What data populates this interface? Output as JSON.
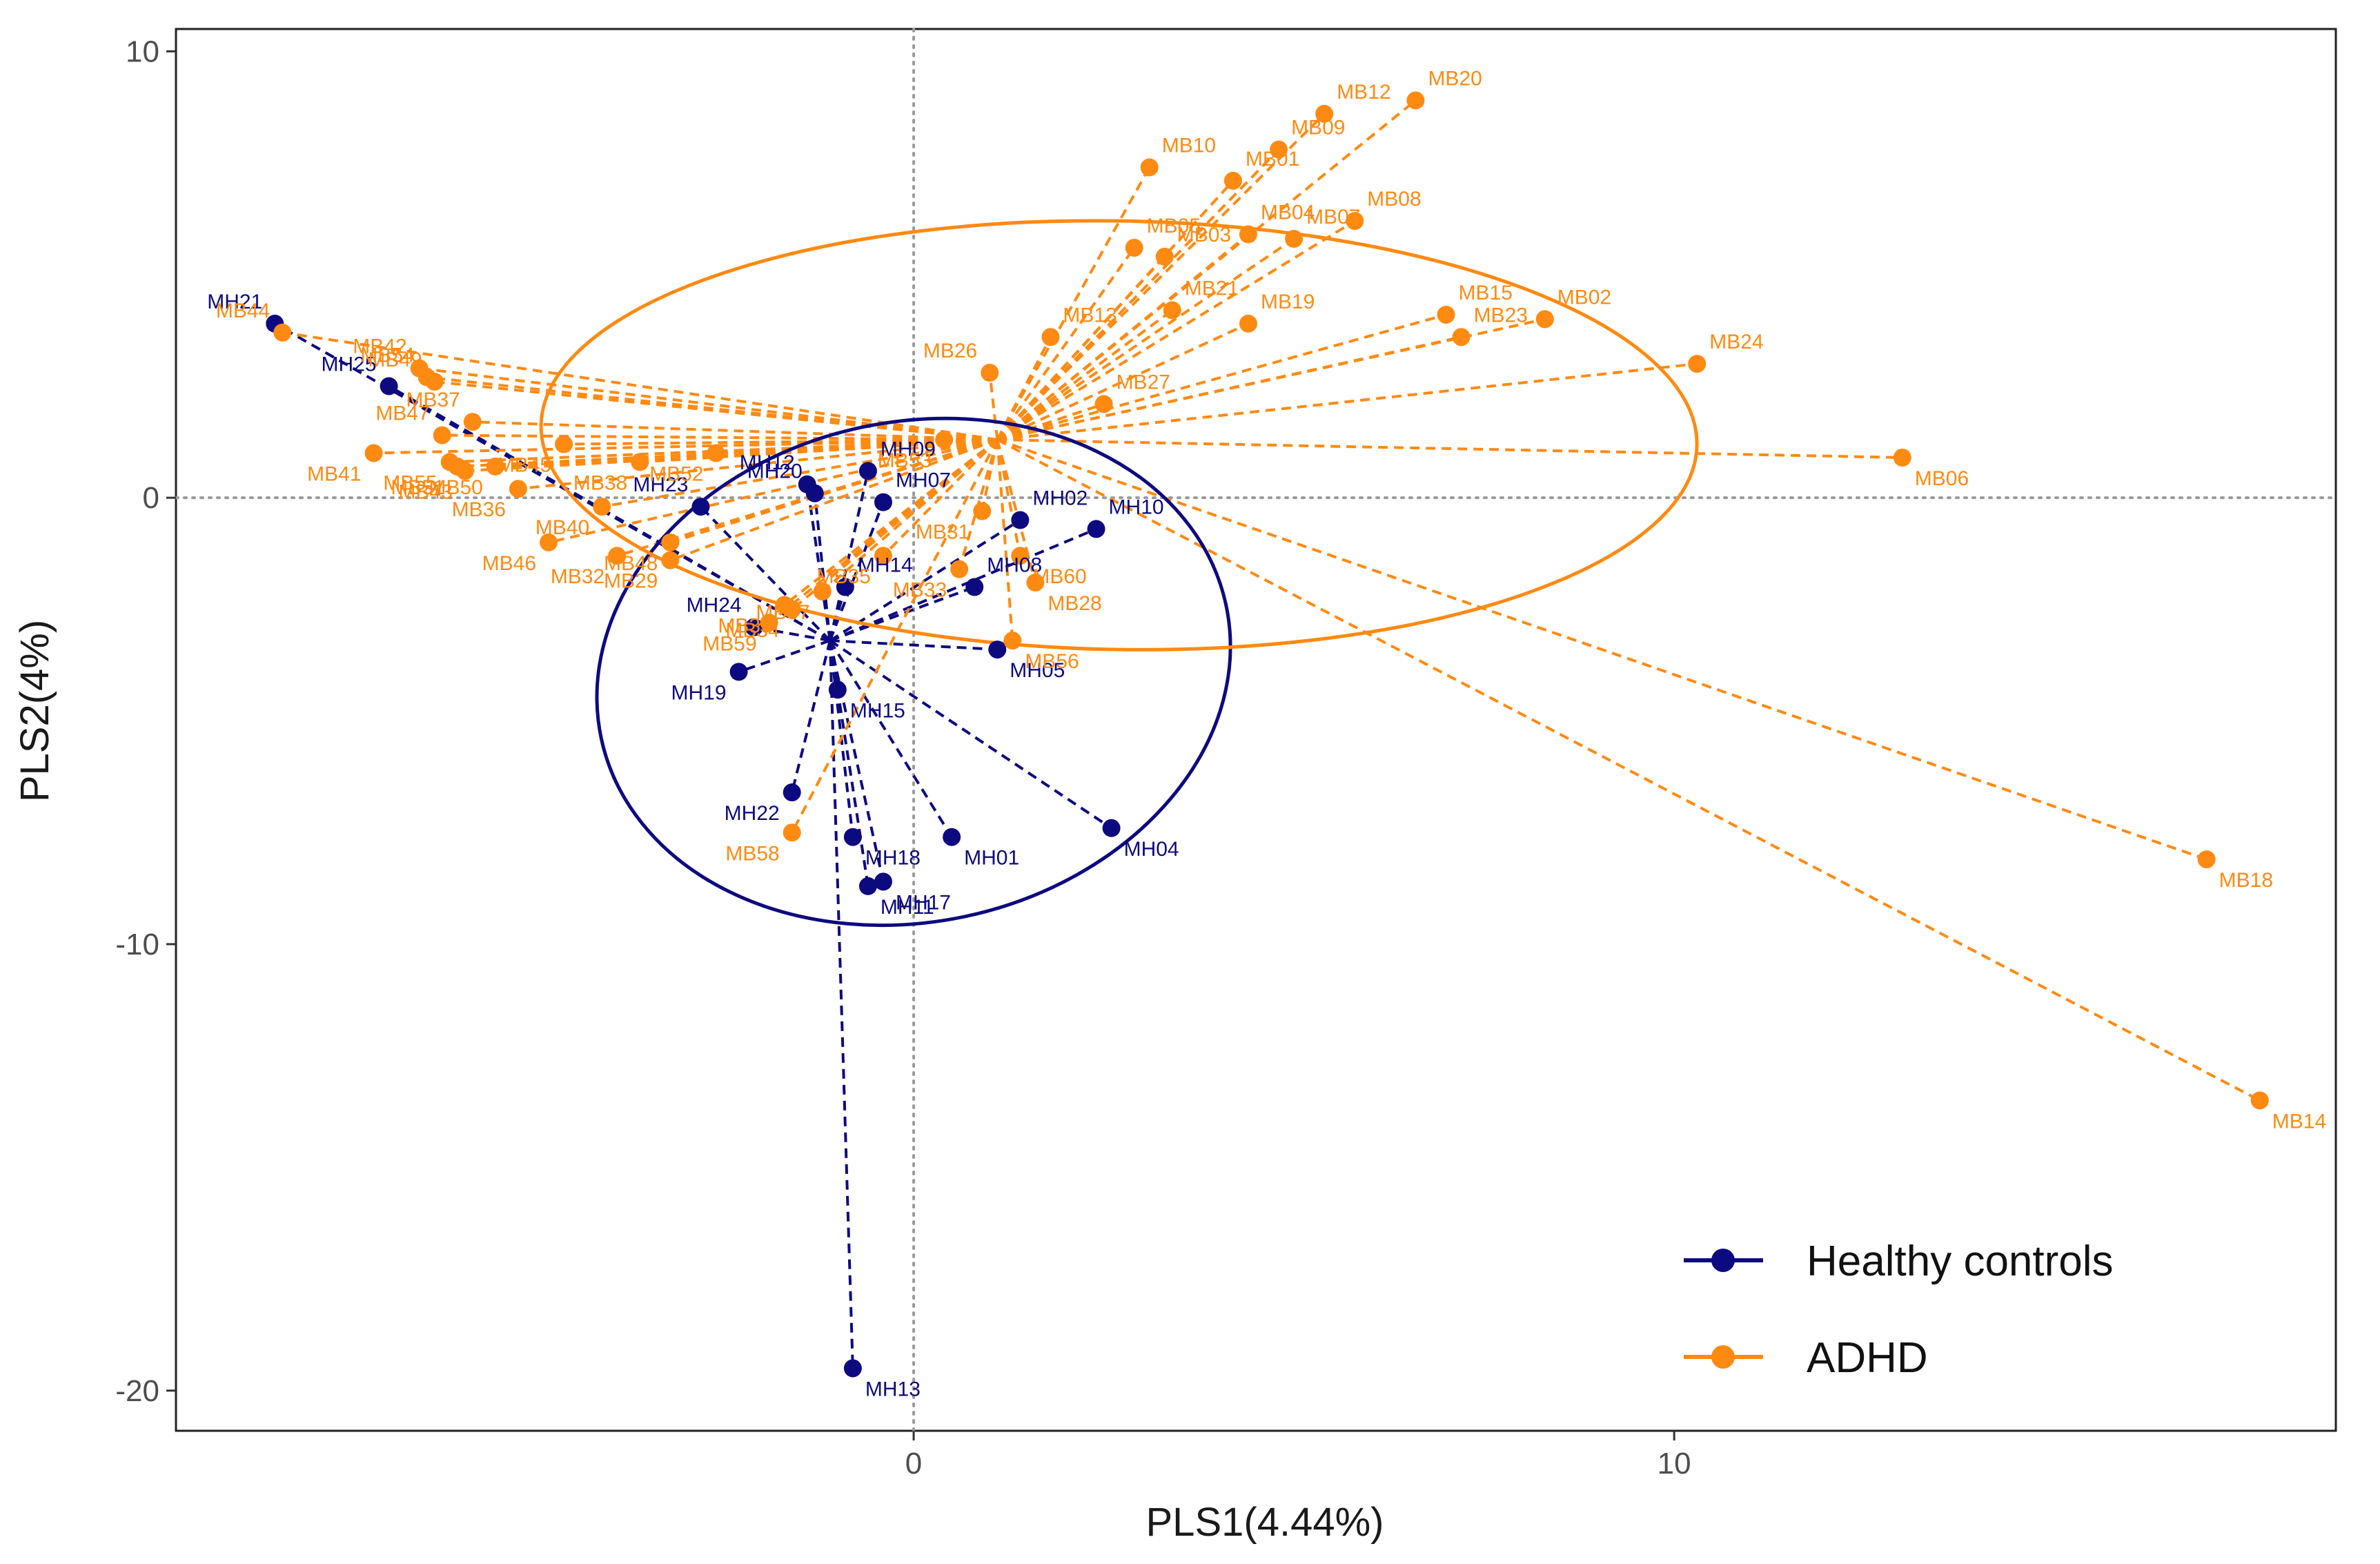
{
  "chart_data": {
    "type": "scatter",
    "title": "",
    "xlabel": "PLS1(4.44%)",
    "ylabel": "PLS2(4%)",
    "xlim": [
      -9.7,
      18.7
    ],
    "ylim": [
      -20.9,
      10.5
    ],
    "xticks": [
      0,
      10
    ],
    "yticks": [
      10,
      0,
      -10,
      -20
    ],
    "grid": false,
    "reference_lines": {
      "x": 0,
      "y": 0,
      "style": "dotted"
    },
    "legend": {
      "position": "bottom-right"
    },
    "colors": {
      "Healthy controls": "#0d0a80",
      "ADHD": "#ff8a12"
    },
    "series": [
      {
        "name": "Healthy controls",
        "centroid": [
          -1.1,
          -3.2
        ],
        "ellipse": {
          "cx": 0.0,
          "cy": -3.9,
          "rx": 4.2,
          "ry": 5.6,
          "angle_deg": 12
        },
        "points": [
          {
            "label": "MH21",
            "x": -8.4,
            "y": 3.9
          },
          {
            "label": "MH25",
            "x": -6.9,
            "y": 2.5
          },
          {
            "label": "MH12",
            "x": -1.4,
            "y": 0.3
          },
          {
            "label": "MH09",
            "x": -0.6,
            "y": 0.6
          },
          {
            "label": "MH20",
            "x": -1.3,
            "y": 0.1
          },
          {
            "label": "MH23",
            "x": -2.8,
            "y": -0.2
          },
          {
            "label": "MH07",
            "x": -0.4,
            "y": -0.1
          },
          {
            "label": "MH02",
            "x": 1.4,
            "y": -0.5
          },
          {
            "label": "MH10",
            "x": 2.4,
            "y": -0.7
          },
          {
            "label": "MH08",
            "x": 0.8,
            "y": -2.0
          },
          {
            "label": "MH14",
            "x": -0.9,
            "y": -2.0
          },
          {
            "label": "MH24",
            "x": -2.1,
            "y": -2.9
          },
          {
            "label": "MH19",
            "x": -2.3,
            "y": -3.9
          },
          {
            "label": "MH05",
            "x": 1.1,
            "y": -3.4
          },
          {
            "label": "MH15",
            "x": -1.0,
            "y": -4.3
          },
          {
            "label": "MH22",
            "x": -1.6,
            "y": -6.6
          },
          {
            "label": "MH18",
            "x": -0.8,
            "y": -7.6
          },
          {
            "label": "MH01",
            "x": 0.5,
            "y": -7.6
          },
          {
            "label": "MH04",
            "x": 2.6,
            "y": -7.4
          },
          {
            "label": "MH17",
            "x": -0.4,
            "y": -8.6
          },
          {
            "label": "MH11",
            "x": -0.6,
            "y": -8.7
          },
          {
            "label": "MH13",
            "x": -0.8,
            "y": -19.5
          }
        ]
      },
      {
        "name": "ADHD",
        "centroid": [
          1.1,
          1.3
        ],
        "ellipse": {
          "cx": 2.7,
          "cy": 1.4,
          "rx": 7.6,
          "ry": 4.8,
          "angle_deg": -1
        },
        "points": [
          {
            "label": "MB44",
            "x": -8.3,
            "y": 3.7
          },
          {
            "label": "MB42",
            "x": -6.5,
            "y": 2.9
          },
          {
            "label": "MB54",
            "x": -6.4,
            "y": 2.7
          },
          {
            "label": "MB49",
            "x": -6.3,
            "y": 2.6
          },
          {
            "label": "MB37",
            "x": -5.8,
            "y": 1.7
          },
          {
            "label": "MB47",
            "x": -6.2,
            "y": 1.4
          },
          {
            "label": "MB55",
            "x": -6.1,
            "y": 0.8
          },
          {
            "label": "MB41",
            "x": -7.1,
            "y": 1.0
          },
          {
            "label": "MB43",
            "x": -5.9,
            "y": 0.6
          },
          {
            "label": "MB51",
            "x": -6.0,
            "y": 0.7
          },
          {
            "label": "MB50",
            "x": -5.5,
            "y": 0.7
          },
          {
            "label": "MB45",
            "x": -4.6,
            "y": 1.2
          },
          {
            "label": "MB38",
            "x": -3.6,
            "y": 0.8
          },
          {
            "label": "MB52",
            "x": -2.6,
            "y": 1.0
          },
          {
            "label": "MB36",
            "x": -5.2,
            "y": 0.2
          },
          {
            "label": "MB46",
            "x": -4.8,
            "y": -1.0
          },
          {
            "label": "MB40",
            "x": -4.1,
            "y": -0.2
          },
          {
            "label": "MB32",
            "x": -3.9,
            "y": -1.3
          },
          {
            "label": "MB48",
            "x": -3.2,
            "y": -1.0
          },
          {
            "label": "MB29",
            "x": -3.2,
            "y": -1.4
          },
          {
            "label": "MB39",
            "x": -1.7,
            "y": -2.4
          },
          {
            "label": "MB59",
            "x": -1.9,
            "y": -2.8
          },
          {
            "label": "MB34",
            "x": -1.6,
            "y": -2.5
          },
          {
            "label": "MB57",
            "x": -1.2,
            "y": -2.1
          },
          {
            "label": "MB35",
            "x": -0.4,
            "y": -1.3
          },
          {
            "label": "MB58",
            "x": -1.6,
            "y": -7.5
          },
          {
            "label": "MB53",
            "x": 0.4,
            "y": 1.3
          },
          {
            "label": "MB26",
            "x": 1.0,
            "y": 2.8
          },
          {
            "label": "MB31",
            "x": 0.9,
            "y": -0.3
          },
          {
            "label": "MB33",
            "x": 0.6,
            "y": -1.6
          },
          {
            "label": "MB60",
            "x": 1.4,
            "y": -1.3
          },
          {
            "label": "MB28",
            "x": 1.6,
            "y": -1.9
          },
          {
            "label": "MB56",
            "x": 1.3,
            "y": -3.2
          },
          {
            "label": "MB13",
            "x": 1.8,
            "y": 3.6
          },
          {
            "label": "MB27",
            "x": 2.5,
            "y": 2.1
          },
          {
            "label": "MB21",
            "x": 3.4,
            "y": 4.2
          },
          {
            "label": "MB03",
            "x": 3.3,
            "y": 5.4
          },
          {
            "label": "MB05",
            "x": 2.9,
            "y": 5.6
          },
          {
            "label": "MB19",
            "x": 4.4,
            "y": 3.9
          },
          {
            "label": "MB04",
            "x": 4.4,
            "y": 5.9
          },
          {
            "label": "MB07",
            "x": 5.0,
            "y": 5.8
          },
          {
            "label": "MB08",
            "x": 5.8,
            "y": 6.2
          },
          {
            "label": "MB10",
            "x": 3.1,
            "y": 7.4
          },
          {
            "label": "MB01",
            "x": 4.2,
            "y": 7.1
          },
          {
            "label": "MB09",
            "x": 4.8,
            "y": 7.8
          },
          {
            "label": "MB12",
            "x": 5.4,
            "y": 8.6
          },
          {
            "label": "MB20",
            "x": 6.6,
            "y": 8.9
          },
          {
            "label": "MB15",
            "x": 7.0,
            "y": 4.1
          },
          {
            "label": "MB23",
            "x": 7.2,
            "y": 3.6
          },
          {
            "label": "MB02",
            "x": 8.3,
            "y": 4.0
          },
          {
            "label": "MB24",
            "x": 10.3,
            "y": 3.0
          },
          {
            "label": "MB06",
            "x": 13.0,
            "y": 0.9
          },
          {
            "label": "MB18",
            "x": 17.0,
            "y": -8.1
          },
          {
            "label": "MB14",
            "x": 17.7,
            "y": -13.5
          }
        ]
      }
    ]
  }
}
